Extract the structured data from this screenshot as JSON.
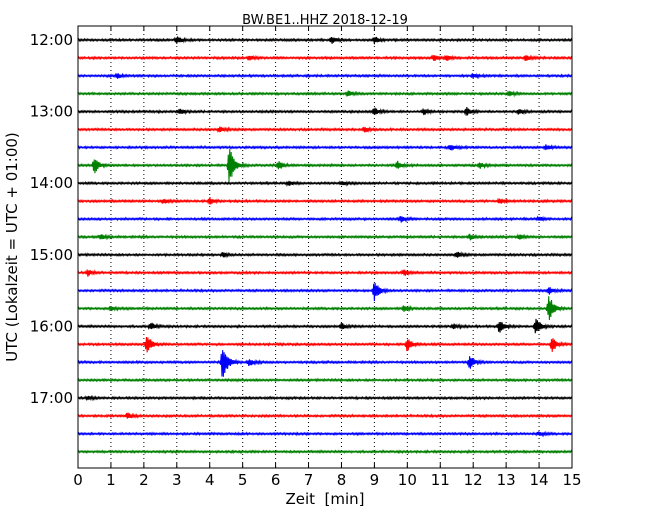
{
  "chart_data": {
    "type": "line",
    "title": "BW.BE1..HHZ 2018-12-19",
    "xlabel": "Zeit  [min]",
    "ylabel": "UTC (Lokalzeit = UTC + 01:00)",
    "xlim": [
      0,
      15
    ],
    "x_ticks": [
      0,
      1,
      2,
      3,
      4,
      5,
      6,
      7,
      8,
      9,
      10,
      11,
      12,
      13,
      14,
      15
    ],
    "x_tick_labels": [
      "0",
      "1",
      "2",
      "3",
      "4",
      "5",
      "6",
      "7",
      "8",
      "9",
      "10",
      "11",
      "12",
      "13",
      "14",
      "15"
    ],
    "y_tick_labels": [
      "12:00",
      "13:00",
      "14:00",
      "15:00",
      "16:00",
      "17:00"
    ],
    "trace_interval_min": 15,
    "vertical_grid": "dotted",
    "colors": [
      "#000000",
      "#ff0000",
      "#0000ff",
      "#008000"
    ],
    "traces": [
      {
        "start": "12:00",
        "events": [
          {
            "t": 3.0,
            "amp": 0.45
          },
          {
            "t": 7.7,
            "amp": 0.45
          },
          {
            "t": 9.0,
            "amp": 0.4
          }
        ]
      },
      {
        "start": "12:15",
        "events": [
          {
            "t": 5.2,
            "amp": 0.3
          },
          {
            "t": 10.8,
            "amp": 0.35
          },
          {
            "t": 11.2,
            "amp": 0.3
          },
          {
            "t": 13.6,
            "amp": 0.35
          }
        ]
      },
      {
        "start": "12:30",
        "events": [
          {
            "t": 1.2,
            "amp": 0.3
          },
          {
            "t": 12.0,
            "amp": 0.25
          }
        ]
      },
      {
        "start": "12:45",
        "events": [
          {
            "t": 8.2,
            "amp": 0.35
          },
          {
            "t": 13.1,
            "amp": 0.3
          }
        ]
      },
      {
        "start": "13:00",
        "events": [
          {
            "t": 3.1,
            "amp": 0.35
          },
          {
            "t": 9.0,
            "amp": 0.45
          },
          {
            "t": 10.5,
            "amp": 0.35
          },
          {
            "t": 11.8,
            "amp": 0.45
          },
          {
            "t": 13.4,
            "amp": 0.35
          }
        ]
      },
      {
        "start": "13:15",
        "events": [
          {
            "t": 4.3,
            "amp": 0.3
          },
          {
            "t": 8.7,
            "amp": 0.35
          }
        ]
      },
      {
        "start": "13:30",
        "events": [
          {
            "t": 11.3,
            "amp": 0.4
          },
          {
            "t": 14.2,
            "amp": 0.3
          }
        ]
      },
      {
        "start": "13:45",
        "events": [
          {
            "t": 0.5,
            "amp": 0.95
          },
          {
            "t": 4.6,
            "amp": 2.2
          },
          {
            "t": 6.1,
            "amp": 0.5
          },
          {
            "t": 9.7,
            "amp": 0.45
          },
          {
            "t": 12.2,
            "amp": 0.35
          }
        ]
      },
      {
        "start": "14:00",
        "events": [
          {
            "t": 6.4,
            "amp": 0.25
          },
          {
            "t": 8.0,
            "amp": 0.25
          }
        ]
      },
      {
        "start": "14:15",
        "events": [
          {
            "t": 2.6,
            "amp": 0.3
          },
          {
            "t": 4.0,
            "amp": 0.35
          },
          {
            "t": 12.8,
            "amp": 0.3
          }
        ]
      },
      {
        "start": "14:30",
        "events": [
          {
            "t": 9.8,
            "amp": 0.35
          },
          {
            "t": 14.0,
            "amp": 0.25
          }
        ]
      },
      {
        "start": "14:45",
        "events": [
          {
            "t": 0.7,
            "amp": 0.3
          },
          {
            "t": 11.9,
            "amp": 0.35
          },
          {
            "t": 13.4,
            "amp": 0.25
          }
        ]
      },
      {
        "start": "15:00",
        "events": [
          {
            "t": 4.4,
            "amp": 0.3
          },
          {
            "t": 11.5,
            "amp": 0.3
          }
        ]
      },
      {
        "start": "15:15",
        "events": [
          {
            "t": 0.3,
            "amp": 0.35
          },
          {
            "t": 9.9,
            "amp": 0.35
          }
        ]
      },
      {
        "start": "15:30",
        "events": [
          {
            "t": 9.0,
            "amp": 1.3
          },
          {
            "t": 14.3,
            "amp": 0.4
          }
        ]
      },
      {
        "start": "15:45",
        "events": [
          {
            "t": 1.0,
            "amp": 0.3
          },
          {
            "t": 9.9,
            "amp": 0.35
          },
          {
            "t": 14.3,
            "amp": 1.7
          }
        ]
      },
      {
        "start": "16:00",
        "events": [
          {
            "t": 2.2,
            "amp": 0.45
          },
          {
            "t": 8.0,
            "amp": 0.35
          },
          {
            "t": 11.4,
            "amp": 0.35
          },
          {
            "t": 12.8,
            "amp": 0.85
          },
          {
            "t": 13.9,
            "amp": 1.0
          }
        ]
      },
      {
        "start": "16:15",
        "events": [
          {
            "t": 2.1,
            "amp": 1.1
          },
          {
            "t": 10.0,
            "amp": 0.85
          },
          {
            "t": 14.4,
            "amp": 0.85
          }
        ]
      },
      {
        "start": "16:30",
        "events": [
          {
            "t": 4.4,
            "amp": 2.3
          },
          {
            "t": 5.2,
            "amp": 0.45
          },
          {
            "t": 11.9,
            "amp": 0.75
          }
        ]
      },
      {
        "start": "16:45",
        "events": []
      },
      {
        "start": "17:00",
        "events": [
          {
            "t": 0.3,
            "amp": 0.25
          }
        ]
      },
      {
        "start": "17:15",
        "events": [
          {
            "t": 1.5,
            "amp": 0.35
          }
        ]
      },
      {
        "start": "17:30",
        "events": [
          {
            "t": 14.0,
            "amp": 0.25
          }
        ]
      },
      {
        "start": "17:45",
        "events": []
      }
    ]
  }
}
